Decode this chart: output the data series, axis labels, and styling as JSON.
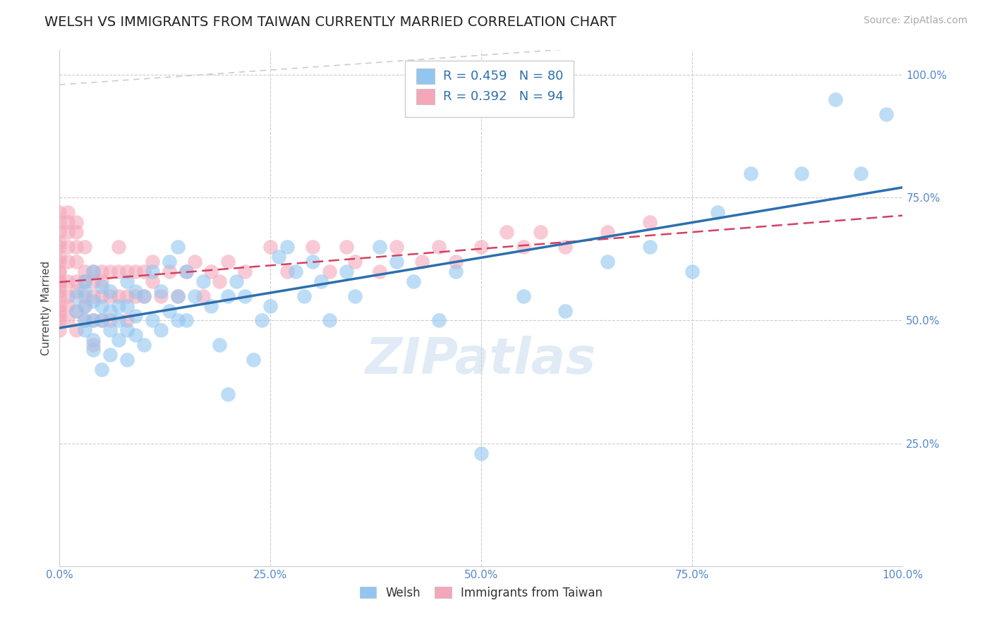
{
  "title": "WELSH VS IMMIGRANTS FROM TAIWAN CURRENTLY MARRIED CORRELATION CHART",
  "source": "Source: ZipAtlas.com",
  "ylabel": "Currently Married",
  "xlim": [
    0.0,
    1.0
  ],
  "ylim": [
    0.0,
    1.05
  ],
  "xtick_vals": [
    0.0,
    0.25,
    0.5,
    0.75,
    1.0
  ],
  "ytick_vals": [
    0.25,
    0.5,
    0.75,
    1.0
  ],
  "welsh_color": "#92c5f0",
  "taiwan_color": "#f4a7b9",
  "welsh_R": 0.459,
  "welsh_N": 80,
  "taiwan_R": 0.392,
  "taiwan_N": 94,
  "welsh_line_color": "#2c6fad",
  "taiwan_line_color": "#d44060",
  "diag_line_color": "#cccccc",
  "tick_color": "#5588cc",
  "legend_color": "#2c6fad",
  "title_fontsize": 14,
  "source_fontsize": 10,
  "axis_label_fontsize": 11,
  "tick_fontsize": 11,
  "legend_fontsize": 13,
  "watermark_text": "ZIPatlas",
  "watermark_color": "#aac8e8",
  "watermark_alpha": 0.35,
  "welsh_x": [
    0.02,
    0.02,
    0.03,
    0.03,
    0.03,
    0.03,
    0.03,
    0.04,
    0.04,
    0.04,
    0.04,
    0.04,
    0.05,
    0.05,
    0.05,
    0.05,
    0.06,
    0.06,
    0.06,
    0.06,
    0.07,
    0.07,
    0.07,
    0.08,
    0.08,
    0.08,
    0.08,
    0.09,
    0.09,
    0.09,
    0.1,
    0.1,
    0.11,
    0.11,
    0.12,
    0.12,
    0.13,
    0.13,
    0.14,
    0.14,
    0.14,
    0.15,
    0.15,
    0.16,
    0.17,
    0.18,
    0.19,
    0.2,
    0.2,
    0.21,
    0.22,
    0.23,
    0.24,
    0.25,
    0.26,
    0.27,
    0.28,
    0.29,
    0.3,
    0.31,
    0.32,
    0.34,
    0.35,
    0.38,
    0.4,
    0.42,
    0.45,
    0.47,
    0.5,
    0.55,
    0.6,
    0.65,
    0.7,
    0.75,
    0.78,
    0.82,
    0.88,
    0.92,
    0.95,
    0.98
  ],
  "welsh_y": [
    0.52,
    0.55,
    0.48,
    0.5,
    0.53,
    0.58,
    0.56,
    0.44,
    0.46,
    0.5,
    0.54,
    0.6,
    0.4,
    0.5,
    0.53,
    0.57,
    0.43,
    0.48,
    0.52,
    0.56,
    0.46,
    0.5,
    0.53,
    0.42,
    0.48,
    0.53,
    0.58,
    0.47,
    0.51,
    0.56,
    0.45,
    0.55,
    0.5,
    0.6,
    0.48,
    0.56,
    0.52,
    0.62,
    0.5,
    0.55,
    0.65,
    0.5,
    0.6,
    0.55,
    0.58,
    0.53,
    0.45,
    0.35,
    0.55,
    0.58,
    0.55,
    0.42,
    0.5,
    0.53,
    0.63,
    0.65,
    0.6,
    0.55,
    0.62,
    0.58,
    0.5,
    0.6,
    0.55,
    0.65,
    0.62,
    0.58,
    0.5,
    0.6,
    0.23,
    0.55,
    0.52,
    0.62,
    0.65,
    0.6,
    0.72,
    0.8,
    0.8,
    0.95,
    0.8,
    0.92
  ],
  "taiwan_x": [
    0.0,
    0.0,
    0.0,
    0.0,
    0.0,
    0.0,
    0.0,
    0.0,
    0.0,
    0.0,
    0.0,
    0.0,
    0.0,
    0.0,
    0.0,
    0.0,
    0.0,
    0.0,
    0.0,
    0.01,
    0.01,
    0.01,
    0.01,
    0.01,
    0.01,
    0.01,
    0.01,
    0.01,
    0.02,
    0.02,
    0.02,
    0.02,
    0.02,
    0.02,
    0.02,
    0.02,
    0.03,
    0.03,
    0.03,
    0.03,
    0.03,
    0.03,
    0.04,
    0.04,
    0.04,
    0.04,
    0.04,
    0.05,
    0.05,
    0.05,
    0.05,
    0.06,
    0.06,
    0.06,
    0.07,
    0.07,
    0.07,
    0.08,
    0.08,
    0.08,
    0.09,
    0.09,
    0.1,
    0.1,
    0.11,
    0.11,
    0.12,
    0.13,
    0.14,
    0.15,
    0.16,
    0.17,
    0.18,
    0.19,
    0.2,
    0.22,
    0.25,
    0.27,
    0.3,
    0.32,
    0.34,
    0.35,
    0.38,
    0.4,
    0.43,
    0.45,
    0.47,
    0.5,
    0.53,
    0.55,
    0.57,
    0.6,
    0.65,
    0.7
  ],
  "taiwan_y": [
    0.5,
    0.6,
    0.62,
    0.55,
    0.58,
    0.52,
    0.48,
    0.65,
    0.68,
    0.7,
    0.72,
    0.56,
    0.58,
    0.63,
    0.66,
    0.53,
    0.51,
    0.57,
    0.6,
    0.55,
    0.58,
    0.62,
    0.65,
    0.5,
    0.53,
    0.68,
    0.7,
    0.72,
    0.58,
    0.62,
    0.65,
    0.48,
    0.52,
    0.56,
    0.68,
    0.7,
    0.55,
    0.6,
    0.65,
    0.5,
    0.53,
    0.58,
    0.55,
    0.6,
    0.5,
    0.45,
    0.58,
    0.55,
    0.6,
    0.5,
    0.58,
    0.55,
    0.6,
    0.5,
    0.55,
    0.6,
    0.65,
    0.55,
    0.6,
    0.5,
    0.55,
    0.6,
    0.55,
    0.6,
    0.58,
    0.62,
    0.55,
    0.6,
    0.55,
    0.6,
    0.62,
    0.55,
    0.6,
    0.58,
    0.62,
    0.6,
    0.65,
    0.6,
    0.65,
    0.6,
    0.65,
    0.62,
    0.6,
    0.65,
    0.62,
    0.65,
    0.62,
    0.65,
    0.68,
    0.65,
    0.68,
    0.65,
    0.68,
    0.7
  ]
}
